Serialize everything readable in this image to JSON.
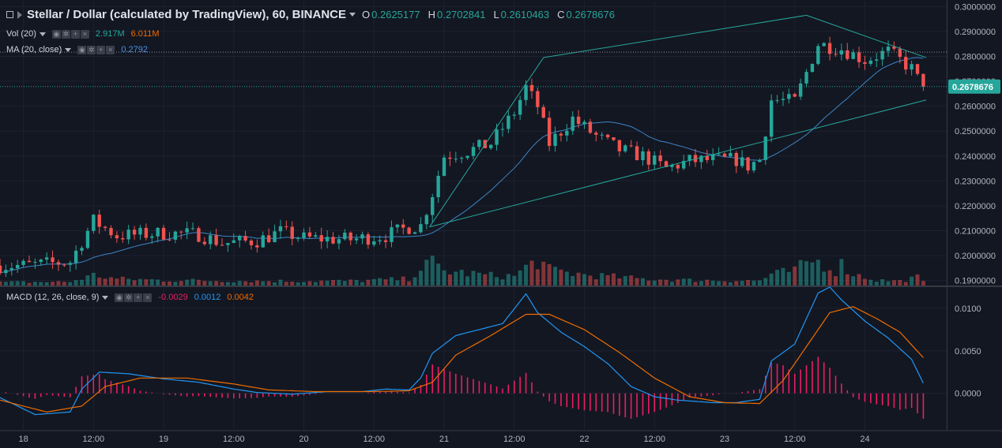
{
  "header": {
    "title": "Stellar / Dollar (calculated by TradingView), 60, BINANCE",
    "ohlc": [
      {
        "key": "O",
        "value": "0.2625177"
      },
      {
        "key": "H",
        "value": "0.2702841"
      },
      {
        "key": "L",
        "value": "0.2610463"
      },
      {
        "key": "C",
        "value": "0.2678676"
      }
    ]
  },
  "indicators": {
    "vol": {
      "label": "Vol (20)",
      "value1": "2.917M",
      "value2": "6.011M"
    },
    "ma": {
      "label": "MA (20, close)",
      "value": "0.2792"
    },
    "macd": {
      "label": "MACD (12, 26, close, 9)",
      "hist": "-0.0029",
      "macd": "0.0012",
      "signal": "0.0042"
    }
  },
  "colors": {
    "background": "#131722",
    "up": "#26a69a",
    "down": "#ef5350",
    "ma": "#3d85c6",
    "trendline": "#26a69a",
    "macd_line": "#2196f3",
    "signal_line": "#ef6c00",
    "histogram": "#e91e63",
    "grid": "#1e2230"
  },
  "chart_data": [
    {
      "type": "candlestick",
      "panel": "price",
      "y_ticks": [
        "0.3000000",
        "0.2900000",
        "0.2800000",
        "0.2700000",
        "0.2600000",
        "0.2500000",
        "0.2400000",
        "0.2300000",
        "0.2200000",
        "0.2100000",
        "0.2000000",
        "0.1900000"
      ],
      "ylim": [
        0.188,
        0.302
      ],
      "last_price_label": "0.2678676",
      "last_price": 0.2678676,
      "dotted_level": 0.2817,
      "x_ticks": [
        "18",
        "12:00",
        "19",
        "12:00",
        "20",
        "12:00",
        "21",
        "12:00",
        "22",
        "12:00",
        "23",
        "12:00",
        "24"
      ],
      "xlim_hours": [
        -4,
        158
      ],
      "close_path": [
        [
          -4,
          0.196
        ],
        [
          0,
          0.196
        ],
        [
          8,
          0.1975
        ],
        [
          12,
          0.214
        ],
        [
          16,
          0.208
        ],
        [
          24,
          0.209
        ],
        [
          30,
          0.2085
        ],
        [
          34,
          0.205
        ],
        [
          40,
          0.206
        ],
        [
          44,
          0.2095
        ],
        [
          48,
          0.207
        ],
        [
          56,
          0.2065
        ],
        [
          62,
          0.208
        ],
        [
          66,
          0.2115
        ],
        [
          68,
          0.212
        ],
        [
          70,
          0.225
        ],
        [
          72,
          0.24
        ],
        [
          76,
          0.242
        ],
        [
          80,
          0.245
        ],
        [
          84,
          0.2575
        ],
        [
          86,
          0.2675
        ],
        [
          88,
          0.26
        ],
        [
          90,
          0.245
        ],
        [
          94,
          0.255
        ],
        [
          98,
          0.248
        ],
        [
          102,
          0.2425
        ],
        [
          106,
          0.24
        ],
        [
          110,
          0.235
        ],
        [
          114,
          0.238
        ],
        [
          118,
          0.2385
        ],
        [
          122,
          0.2385
        ],
        [
          124,
          0.236
        ],
        [
          126,
          0.2385
        ],
        [
          128,
          0.2625
        ],
        [
          132,
          0.262
        ],
        [
          136,
          0.285
        ],
        [
          140,
          0.283
        ],
        [
          144,
          0.2785
        ],
        [
          148,
          0.282
        ],
        [
          152,
          0.275
        ],
        [
          154,
          0.267
        ]
      ],
      "volume_scale": [
        0,
        17
      ],
      "volume_path": [
        [
          -4,
          0.8
        ],
        [
          8,
          0.9
        ],
        [
          12,
          2.5
        ],
        [
          16,
          1.6
        ],
        [
          24,
          1.3
        ],
        [
          40,
          1.1
        ],
        [
          56,
          1.1
        ],
        [
          66,
          1.6
        ],
        [
          68,
          4.2
        ],
        [
          70,
          5.4
        ],
        [
          72,
          3.5
        ],
        [
          80,
          2.4
        ],
        [
          84,
          2.3
        ],
        [
          86,
          4.3
        ],
        [
          88,
          6.1
        ],
        [
          90,
          3.7
        ],
        [
          96,
          2.6
        ],
        [
          106,
          1.6
        ],
        [
          114,
          1.3
        ],
        [
          122,
          1.2
        ],
        [
          126,
          1.2
        ],
        [
          128,
          2.6
        ],
        [
          132,
          3.6
        ],
        [
          135,
          6.0
        ],
        [
          137,
          5.2
        ],
        [
          139,
          3.6
        ],
        [
          140,
          5.0
        ],
        [
          142,
          2.8
        ],
        [
          146,
          1.3
        ],
        [
          150,
          1.1
        ],
        [
          153,
          2.0
        ],
        [
          154,
          0.9
        ]
      ],
      "ma": {
        "name": "MA (20, close)",
        "period": 20,
        "color": "#3d85c6"
      },
      "trend_lines": [
        {
          "from": [
            69.5,
            0.2115
          ],
          "to": [
            89,
            0.2795
          ]
        },
        {
          "from": [
            89,
            0.2795
          ],
          "to": [
            134,
            0.2965
          ]
        },
        {
          "from": [
            69.5,
            0.2115
          ],
          "to": [
            154.5,
            0.2625
          ]
        },
        {
          "from": [
            134,
            0.2965
          ],
          "to": [
            154.5,
            0.2795
          ]
        }
      ]
    },
    {
      "type": "line",
      "panel": "macd",
      "y_ticks": [
        "0.0100",
        "0.0050",
        "0.0000"
      ],
      "ylim": [
        -0.0043,
        0.0125
      ],
      "series": [
        {
          "name": "MACD",
          "color": "#2196f3",
          "points": [
            [
              -4,
              -0.0005
            ],
            [
              2,
              -0.0025
            ],
            [
              8,
              -0.0022
            ],
            [
              10,
              0.0005
            ],
            [
              13,
              0.0025
            ],
            [
              18,
              0.0023
            ],
            [
              24,
              0.0017
            ],
            [
              30,
              0.0013
            ],
            [
              36,
              0.0005
            ],
            [
              40,
              0.0001
            ],
            [
              46,
              -0.0001
            ],
            [
              52,
              0.0002
            ],
            [
              58,
              0.0002
            ],
            [
              62,
              0.0005
            ],
            [
              66,
              0.0004
            ],
            [
              68,
              0.0018
            ],
            [
              70,
              0.0047
            ],
            [
              74,
              0.0068
            ],
            [
              78,
              0.0075
            ],
            [
              82,
              0.0082
            ],
            [
              86,
              0.0117
            ],
            [
              88,
              0.0095
            ],
            [
              92,
              0.0072
            ],
            [
              96,
              0.0055
            ],
            [
              100,
              0.0035
            ],
            [
              104,
              0.0008
            ],
            [
              108,
              -0.0004
            ],
            [
              112,
              -0.0008
            ],
            [
              118,
              -0.0011
            ],
            [
              122,
              -0.0011
            ],
            [
              126,
              -0.0007
            ],
            [
              128,
              0.0038
            ],
            [
              132,
              0.0058
            ],
            [
              136,
              0.0118
            ],
            [
              138,
              0.0125
            ],
            [
              140,
              0.011
            ],
            [
              144,
              0.0085
            ],
            [
              148,
              0.0065
            ],
            [
              152,
              0.004
            ],
            [
              154,
              0.0012
            ]
          ]
        },
        {
          "name": "Signal",
          "color": "#ef6c00",
          "points": [
            [
              -4,
              -0.0008
            ],
            [
              4,
              -0.0022
            ],
            [
              10,
              -0.0015
            ],
            [
              14,
              0.0008
            ],
            [
              20,
              0.0018
            ],
            [
              28,
              0.0018
            ],
            [
              36,
              0.0011
            ],
            [
              42,
              0.0004
            ],
            [
              50,
              0.0002
            ],
            [
              60,
              0.0002
            ],
            [
              66,
              0.0003
            ],
            [
              70,
              0.0013
            ],
            [
              74,
              0.0045
            ],
            [
              80,
              0.0068
            ],
            [
              86,
              0.0093
            ],
            [
              90,
              0.0093
            ],
            [
              96,
              0.0075
            ],
            [
              102,
              0.0048
            ],
            [
              108,
              0.0018
            ],
            [
              114,
              -0.0004
            ],
            [
              120,
              -0.0011
            ],
            [
              126,
              -0.0012
            ],
            [
              130,
              0.0015
            ],
            [
              134,
              0.0055
            ],
            [
              138,
              0.0095
            ],
            [
              142,
              0.0102
            ],
            [
              146,
              0.0088
            ],
            [
              150,
              0.0072
            ],
            [
              154,
              0.0042
            ]
          ]
        }
      ],
      "histogram": {
        "name": "Histogram",
        "color": "#e91e63"
      }
    }
  ]
}
